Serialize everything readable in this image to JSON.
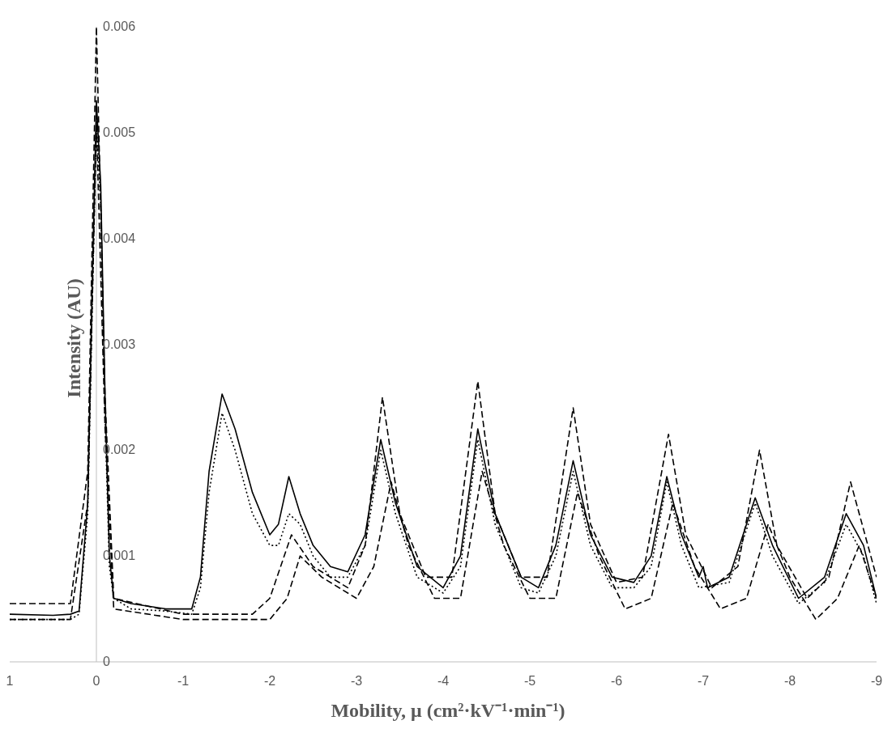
{
  "chart_data": {
    "type": "line",
    "xlabel": "Mobility, μ (cm²·kV⁻¹·min⁻¹)",
    "ylabel": "Intensity (AU)",
    "xlim": [
      1,
      -9
    ],
    "xticks": [
      1,
      0,
      -1,
      -2,
      -3,
      -4,
      -5,
      -6,
      -7,
      -8,
      -9
    ],
    "ylim": [
      0,
      0.006
    ],
    "yticks": [
      0,
      0.001,
      0.002,
      0.003,
      0.004,
      0.005,
      0.006
    ],
    "grid": false,
    "marker": "none",
    "series": [
      {
        "color": "#000000",
        "line_style": "solid",
        "x": [
          1,
          0.5,
          0.3,
          0.2,
          0.1,
          0.05,
          0,
          -0.05,
          -0.1,
          -0.15,
          -0.2,
          -0.4,
          -0.8,
          -1.1,
          -1.2,
          -1.3,
          -1.45,
          -1.6,
          -1.8,
          -2.0,
          -2.1,
          -2.22,
          -2.35,
          -2.5,
          -2.7,
          -2.9,
          -3.1,
          -3.28,
          -3.45,
          -3.7,
          -4.0,
          -4.2,
          -4.4,
          -4.6,
          -4.9,
          -5.1,
          -5.3,
          -5.5,
          -5.7,
          -5.95,
          -6.2,
          -6.4,
          -6.58,
          -6.75,
          -6.95,
          -7.0,
          -7.05,
          -7.3,
          -7.6,
          -7.8,
          -8.1,
          -8.4,
          -8.65,
          -8.85,
          -9
        ],
        "values": [
          0.00045,
          0.00044,
          0.00045,
          0.00048,
          0.0015,
          0.0035,
          0.0053,
          0.0045,
          0.0025,
          0.001,
          0.0006,
          0.00055,
          0.0005,
          0.0005,
          0.0008,
          0.0018,
          0.00253,
          0.0022,
          0.0016,
          0.0012,
          0.0013,
          0.00175,
          0.0014,
          0.0011,
          0.0009,
          0.00085,
          0.0012,
          0.0021,
          0.0015,
          0.0009,
          0.0007,
          0.001,
          0.0022,
          0.0014,
          0.0008,
          0.0007,
          0.0011,
          0.0019,
          0.0012,
          0.0008,
          0.00075,
          0.001,
          0.00175,
          0.0012,
          0.0008,
          0.0009,
          0.0007,
          0.0008,
          0.00155,
          0.0011,
          0.0006,
          0.0008,
          0.0014,
          0.0011,
          0.0006
        ]
      },
      {
        "color": "#000000",
        "line_style": "dotted",
        "x": [
          1,
          0.5,
          0.3,
          0.2,
          0.1,
          0.05,
          0,
          -0.05,
          -0.1,
          -0.15,
          -0.2,
          -0.4,
          -0.8,
          -1.1,
          -1.2,
          -1.3,
          -1.45,
          -1.6,
          -1.8,
          -2.0,
          -2.1,
          -2.22,
          -2.35,
          -2.5,
          -2.7,
          -2.9,
          -3.1,
          -3.28,
          -3.45,
          -3.7,
          -4.0,
          -4.2,
          -4.4,
          -4.6,
          -4.9,
          -5.1,
          -5.3,
          -5.5,
          -5.7,
          -5.95,
          -6.2,
          -6.4,
          -6.58,
          -6.75,
          -6.95,
          -7.3,
          -7.6,
          -7.8,
          -8.1,
          -8.4,
          -8.65,
          -8.85,
          -9
        ],
        "values": [
          0.0004,
          0.0004,
          0.0004,
          0.00045,
          0.0014,
          0.0033,
          0.0051,
          0.0043,
          0.0023,
          0.0009,
          0.0006,
          0.0005,
          0.00048,
          0.00045,
          0.0007,
          0.0016,
          0.00235,
          0.002,
          0.0014,
          0.0011,
          0.0011,
          0.0014,
          0.0013,
          0.001,
          0.0008,
          0.0008,
          0.0011,
          0.002,
          0.0014,
          0.0008,
          0.00065,
          0.0009,
          0.0021,
          0.0013,
          0.0007,
          0.00065,
          0.001,
          0.0018,
          0.0011,
          0.0007,
          0.0007,
          0.0009,
          0.0017,
          0.0011,
          0.0007,
          0.00075,
          0.0015,
          0.001,
          0.00055,
          0.00075,
          0.0013,
          0.001,
          0.00055
        ]
      },
      {
        "color": "#000000",
        "line_style": "dashed",
        "x": [
          1,
          0.3,
          0.1,
          0,
          -0.1,
          -0.2,
          -1,
          -1.8,
          -2.0,
          -2.25,
          -2.5,
          -2.9,
          -3.1,
          -3.3,
          -3.5,
          -3.8,
          -4.1,
          -4.4,
          -4.6,
          -4.9,
          -5.2,
          -5.5,
          -5.7,
          -6.0,
          -6.3,
          -6.6,
          -6.8,
          -7.1,
          -7.4,
          -7.65,
          -7.85,
          -8.2,
          -8.45,
          -8.7,
          -8.9,
          -9
        ],
        "values": [
          0.00055,
          0.00055,
          0.0018,
          0.006,
          0.0025,
          0.0006,
          0.00045,
          0.00045,
          0.0006,
          0.0012,
          0.0009,
          0.0007,
          0.0011,
          0.0025,
          0.0014,
          0.0008,
          0.0008,
          0.00265,
          0.0014,
          0.0008,
          0.0008,
          0.0024,
          0.0013,
          0.00075,
          0.0008,
          0.00215,
          0.0012,
          0.0007,
          0.0009,
          0.002,
          0.0011,
          0.0006,
          0.0008,
          0.0017,
          0.0011,
          0.0008
        ]
      },
      {
        "color": "#000000",
        "line_style": "dashed",
        "x": [
          1,
          0.3,
          0.1,
          0,
          -0.1,
          -0.2,
          -1,
          -2.0,
          -2.2,
          -2.35,
          -2.6,
          -3.0,
          -3.2,
          -3.4,
          -3.6,
          -3.9,
          -4.2,
          -4.45,
          -4.7,
          -5.0,
          -5.3,
          -5.55,
          -5.8,
          -6.1,
          -6.4,
          -6.65,
          -6.9,
          -7.2,
          -7.5,
          -7.75,
          -8.0,
          -8.3,
          -8.55,
          -8.8,
          -9
        ],
        "values": [
          0.0004,
          0.0004,
          0.0015,
          0.0051,
          0.0022,
          0.0005,
          0.0004,
          0.0004,
          0.0006,
          0.001,
          0.0008,
          0.0006,
          0.0009,
          0.0017,
          0.0011,
          0.0006,
          0.0006,
          0.0018,
          0.0011,
          0.0006,
          0.0006,
          0.0016,
          0.001,
          0.0005,
          0.0006,
          0.0015,
          0.0009,
          0.0005,
          0.0006,
          0.0013,
          0.0008,
          0.0004,
          0.0006,
          0.0011,
          0.0006
        ]
      }
    ]
  }
}
